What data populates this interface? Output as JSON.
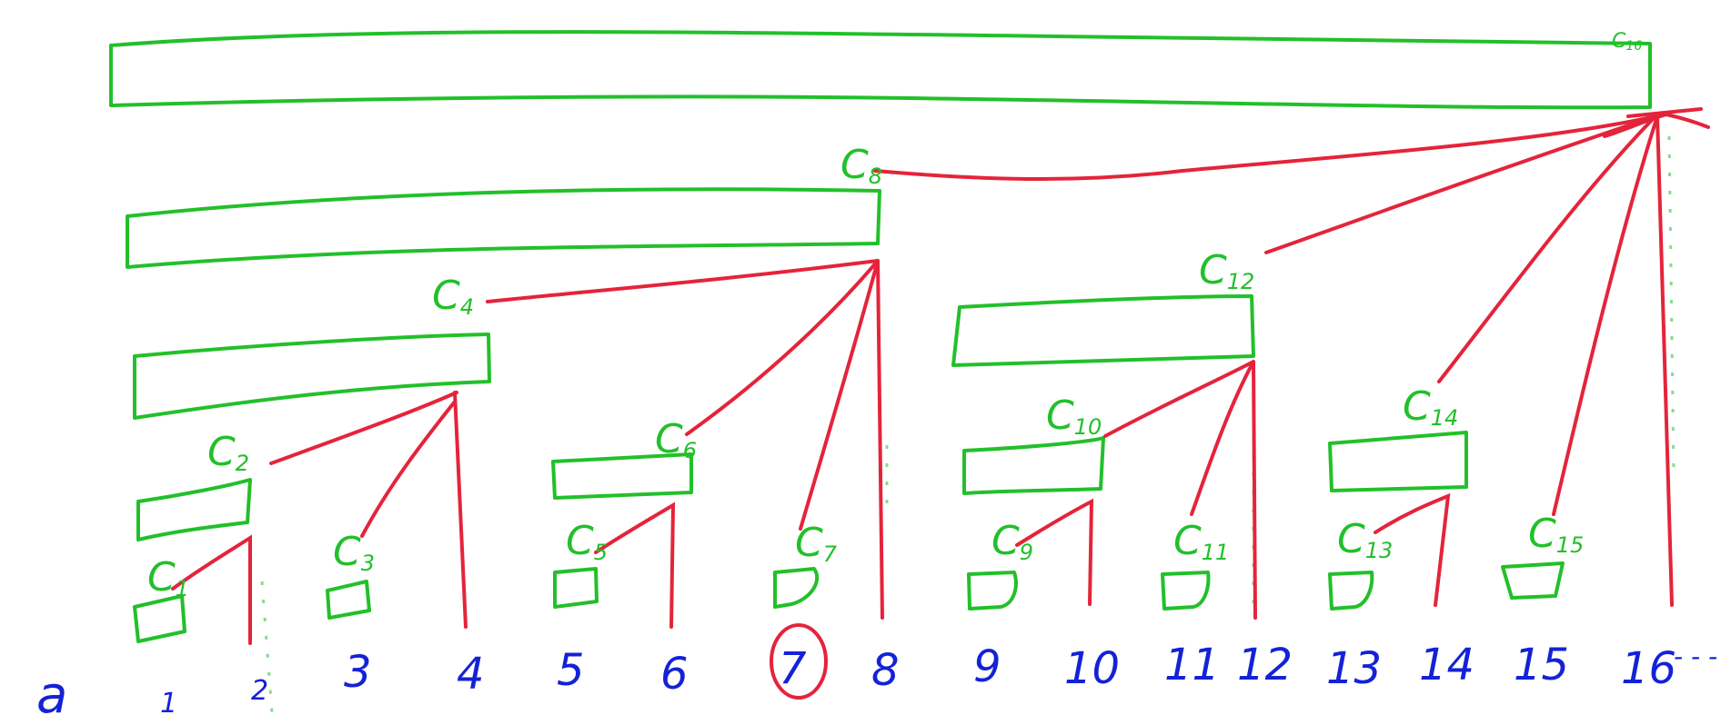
{
  "colors": {
    "tree": "#22c02a",
    "links": "#e4243b",
    "indices": "#1422d6",
    "highlight": "#e4243b"
  },
  "array": {
    "name": "a",
    "indices": [
      "1",
      "2",
      "3",
      "4",
      "5",
      "6",
      "7",
      "8",
      "9",
      "10",
      "11",
      "12",
      "13",
      "14",
      "15",
      "16"
    ],
    "trailing": "- - -",
    "highlighted_index": "7"
  },
  "nodes": [
    {
      "id": "c1",
      "letter": "C",
      "sub": "1"
    },
    {
      "id": "c2",
      "letter": "C",
      "sub": "2"
    },
    {
      "id": "c3",
      "letter": "C",
      "sub": "3"
    },
    {
      "id": "c4",
      "letter": "C",
      "sub": "4"
    },
    {
      "id": "c5",
      "letter": "C",
      "sub": "5"
    },
    {
      "id": "c6",
      "letter": "C",
      "sub": "6"
    },
    {
      "id": "c7",
      "letter": "C",
      "sub": "7"
    },
    {
      "id": "c8",
      "letter": "C",
      "sub": "8"
    },
    {
      "id": "c9",
      "letter": "C",
      "sub": "9"
    },
    {
      "id": "c10",
      "letter": "C",
      "sub": "10"
    },
    {
      "id": "c11",
      "letter": "C",
      "sub": "11"
    },
    {
      "id": "c12",
      "letter": "C",
      "sub": "12"
    },
    {
      "id": "c13",
      "letter": "C",
      "sub": "13"
    },
    {
      "id": "c14",
      "letter": "C",
      "sub": "14"
    },
    {
      "id": "c15",
      "letter": "C",
      "sub": "15"
    },
    {
      "id": "c16",
      "letter": "C",
      "sub": "16"
    }
  ]
}
